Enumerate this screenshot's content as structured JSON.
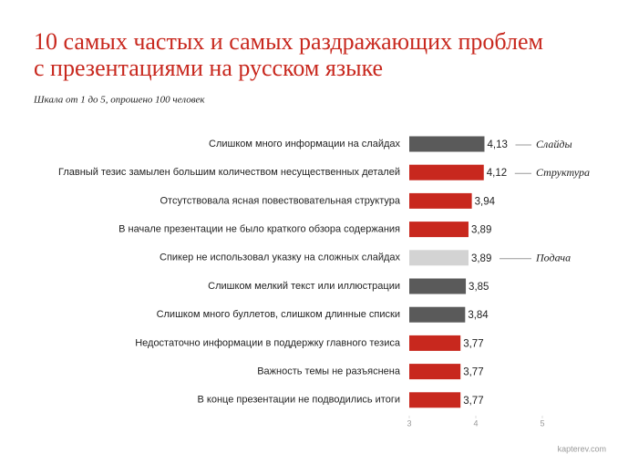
{
  "chart_data": {
    "type": "bar",
    "orientation": "horizontal",
    "title": [
      "10 самых частых и самых раздражающих проблем",
      "с презентациями на русском языке"
    ],
    "subtitle": "Шкала от 1 до 5, опрошено 100 человек",
    "categories": [
      "Слишком много информации на слайдах",
      "Главный тезис замылен большим количеством несущественных деталей",
      "Отсутствовала ясная повествовательная структура",
      "В начале презентации не было краткого обзора содержания",
      "Спикер не использовал указку на сложных слайдах",
      "Слишком мелкий текст или иллюстрации",
      "Слишком много буллетов, слишком длинные списки",
      "Недостаточно информации в поддержку главного тезиса",
      "Важность темы не разъяснена",
      "В конце презентации не подводились итоги"
    ],
    "values": [
      4.13,
      4.12,
      3.94,
      3.89,
      3.89,
      3.85,
      3.84,
      3.77,
      3.77,
      3.77
    ],
    "value_labels": [
      "4,13",
      "4,12",
      "3,94",
      "3,89",
      "3,89",
      "3,85",
      "3,84",
      "3,77",
      "3,77",
      "3,77"
    ],
    "colors": [
      "#5a5a5a",
      "#c8281e",
      "#c8281e",
      "#c8281e",
      "#d3d3d3",
      "#5a5a5a",
      "#5a5a5a",
      "#c8281e",
      "#c8281e",
      "#c8281e"
    ],
    "annotations": [
      "Слайды",
      "Структура",
      null,
      null,
      "Подача",
      null,
      null,
      null,
      null,
      null
    ],
    "xlim": [
      3,
      5
    ],
    "xticks": [
      3,
      4,
      5
    ],
    "source": "kapterev.com"
  }
}
